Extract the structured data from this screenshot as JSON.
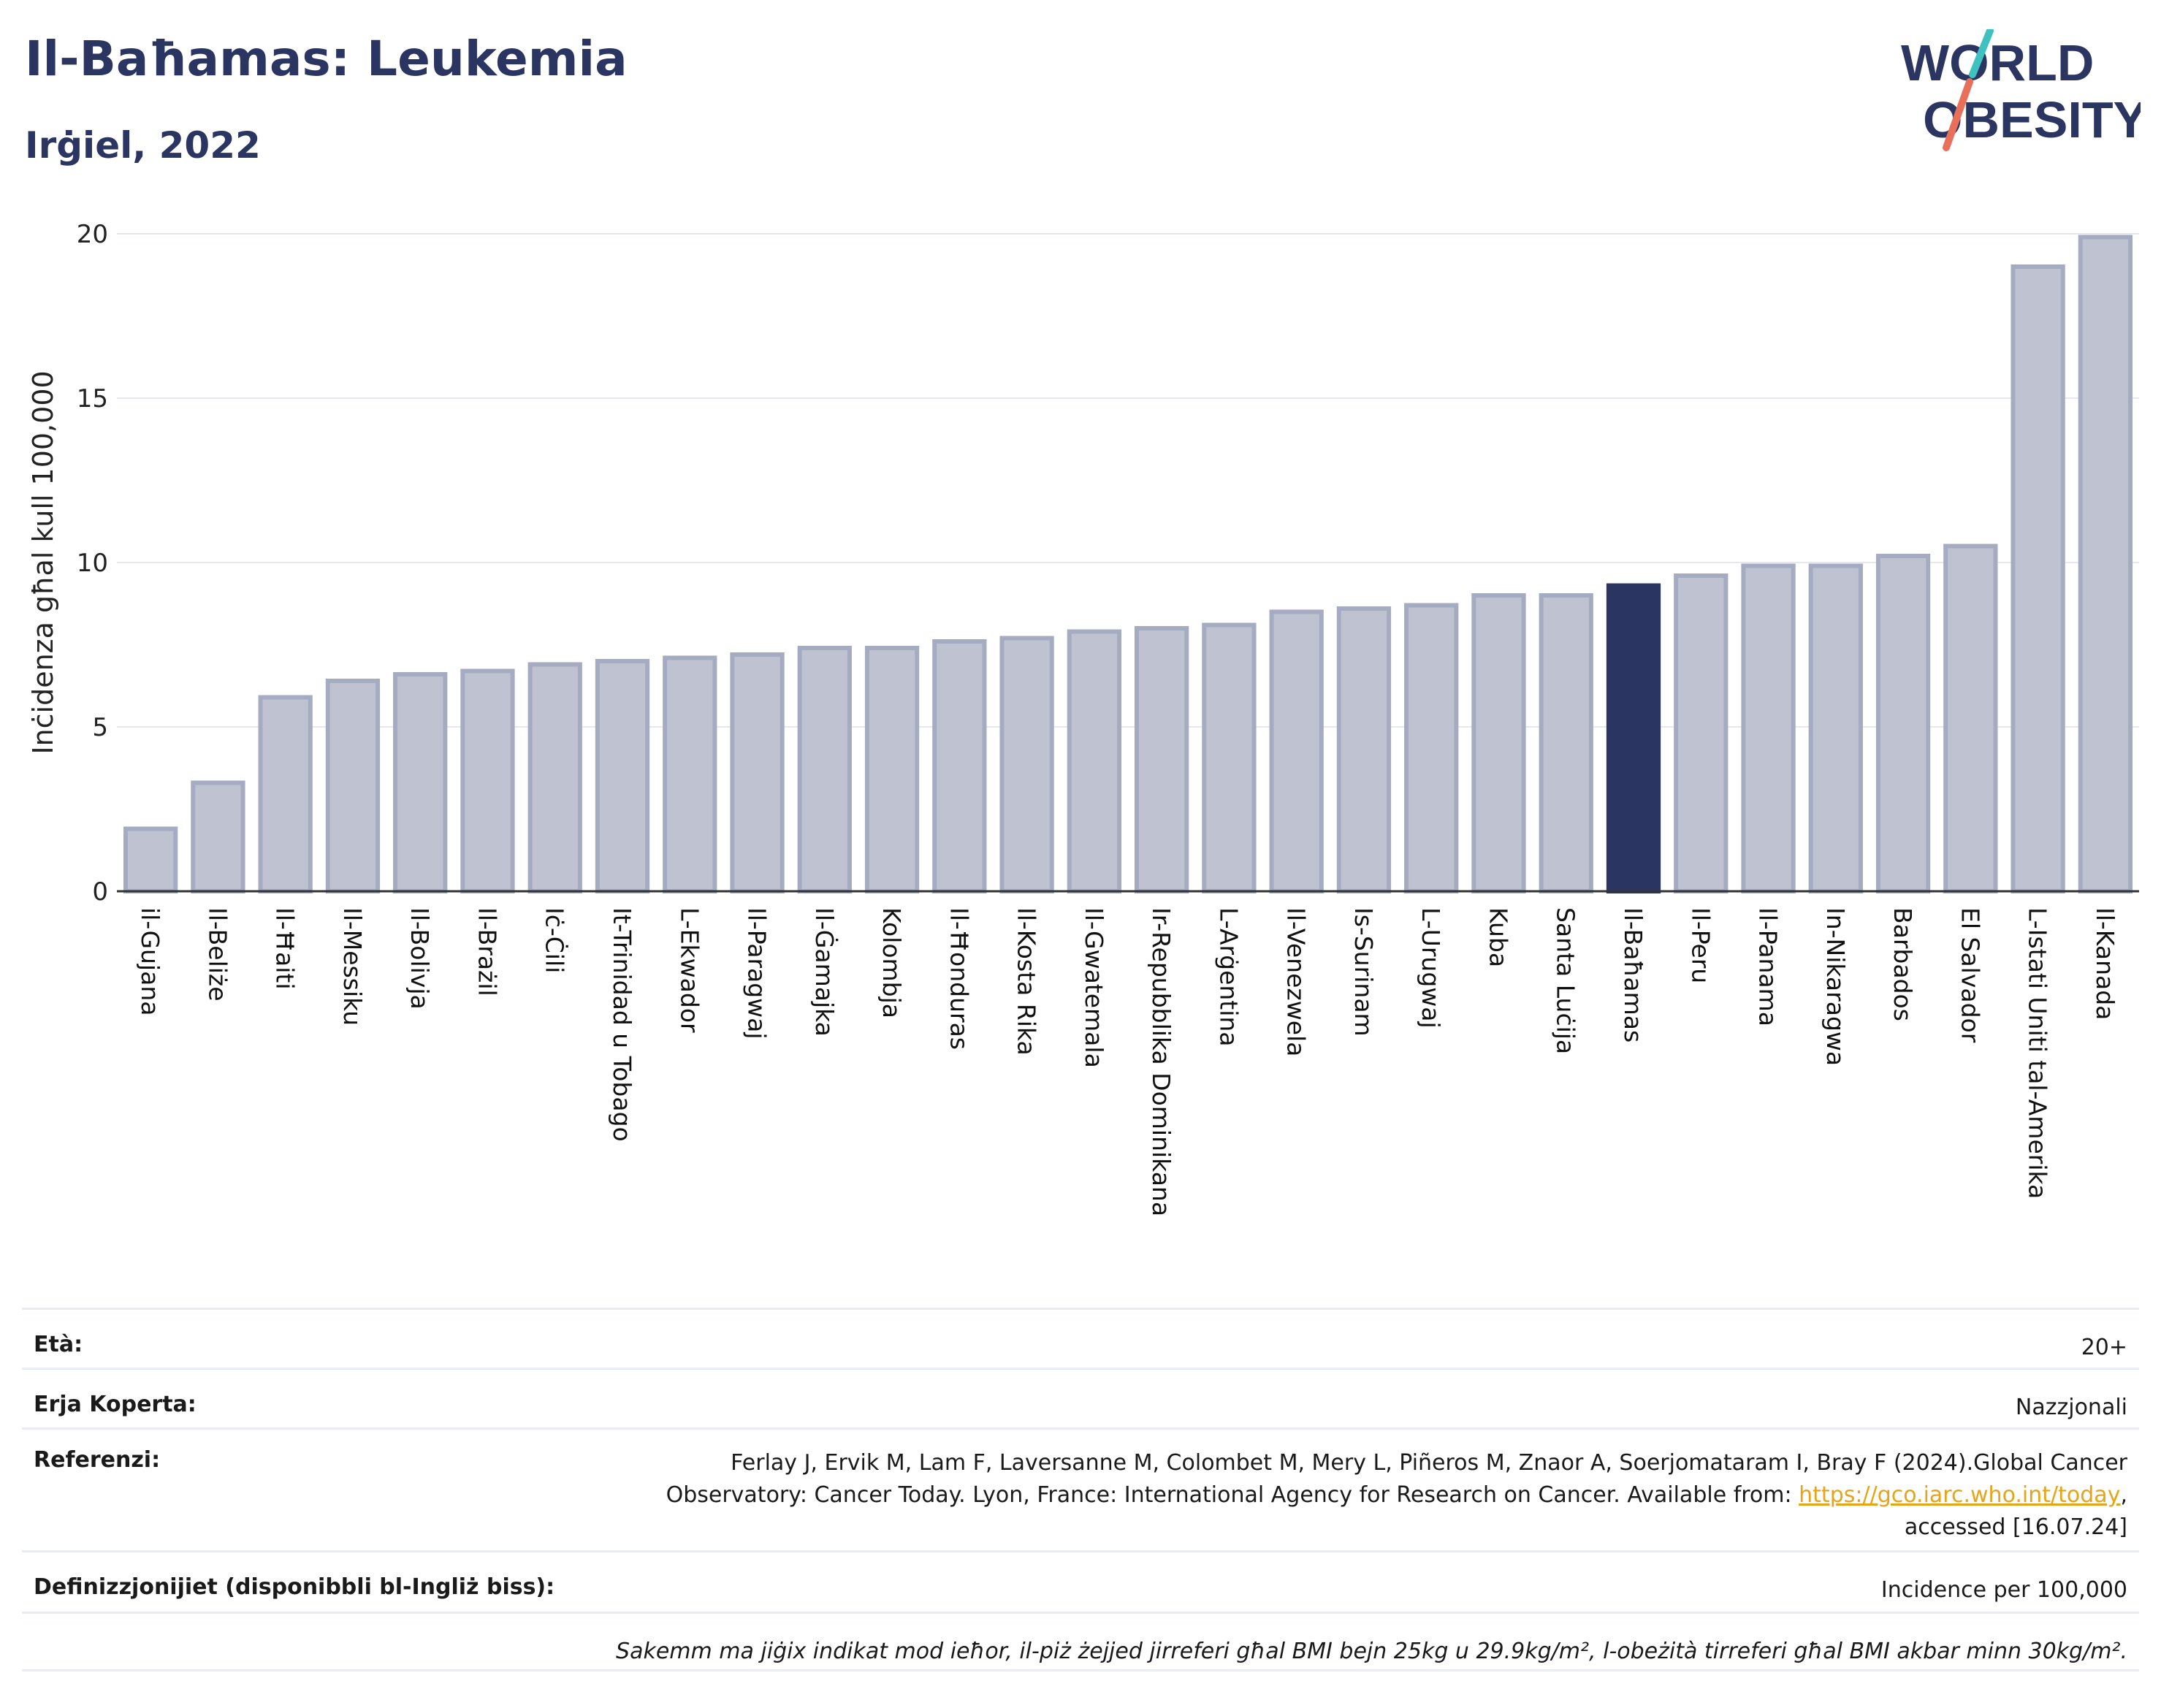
{
  "header": {
    "title": "Il-Baħamas: Leukemia",
    "subtitle": "Irġiel, 2022",
    "logo_line1": "WORLD",
    "logo_line2": "OBESITY"
  },
  "colors": {
    "bar": "#bfc3d1",
    "bar_border": "#a5abc0",
    "highlight": "#2b3561",
    "title": "#2b3561",
    "logo_slash_top": "#3fc1c0",
    "logo_slash_bottom": "#e8705b"
  },
  "chart_data": {
    "type": "bar",
    "ylabel": "Inċidenza għal kull 100,000",
    "ylim": [
      0,
      20
    ],
    "yticks": [
      0,
      5,
      10,
      15,
      20
    ],
    "grid": true,
    "highlight": "Il-Baħamas",
    "categories": [
      "il-Gujana",
      "Il-Beliże",
      "Il-Ħaiti",
      "Il-Messiku",
      "Il-Bolivja",
      "Il-Brażil",
      "Iċ-Ċili",
      "It-Trinidad u Tobago",
      "L-Ekwador",
      "Il-Paragwaj",
      "Il-Ġamajka",
      "Kolombja",
      "Il-Ħonduras",
      "Il-Kosta Rika",
      "Il-Gwatemala",
      "Ir-Repubblika Dominikana",
      "L-Arġentina",
      "Il-Venezwela",
      "Is-Surinam",
      "L-Urugwaj",
      "Kuba",
      "Santa Luċija",
      "Il-Baħamas",
      "Il-Peru",
      "Il-Panama",
      "In-Nikaragwa",
      "Barbados",
      "El Salvador",
      "L-Istati Uniti tal-Amerika",
      "Il-Kanada"
    ],
    "values": [
      1.9,
      3.3,
      5.9,
      6.4,
      6.6,
      6.7,
      6.9,
      7.0,
      7.1,
      7.2,
      7.4,
      7.4,
      7.6,
      7.7,
      7.9,
      8.0,
      8.1,
      8.5,
      8.6,
      8.7,
      9.0,
      9.0,
      9.3,
      9.6,
      9.9,
      9.9,
      10.2,
      10.5,
      19.0,
      19.9
    ]
  },
  "meta": {
    "age_label": "Età:",
    "age_value": "20+",
    "area_label": "Erja Koperta:",
    "area_value": "Nazzjonali",
    "ref_label": "Referenzi:",
    "ref_line1": "Ferlay J, Ervik M, Lam F, Laversanne M, Colombet M, Mery L, Piñeros M, Znaor A, Soerjomataram I, Bray F (2024).Global Cancer",
    "ref_line2": "Observatory: Cancer Today. Lyon, France: International Agency for Research on Cancer. Available from: ",
    "ref_link": "https://gco.iarc.who.int/today",
    "ref_line2_end": ",",
    "ref_line3": "accessed [16.07.24]",
    "def_label": "Definizzjonijiet (disponibbli bl-Ingliż biss):",
    "def_value": "Incidence per 100,000",
    "note": "Sakemm ma jiġix indikat mod ieħor, il-piż żejjed jirreferi għal BMI bejn 25kg u 29.9kg/m², l-obeżità tirreferi għal BMI akbar minn 30kg/m²."
  }
}
